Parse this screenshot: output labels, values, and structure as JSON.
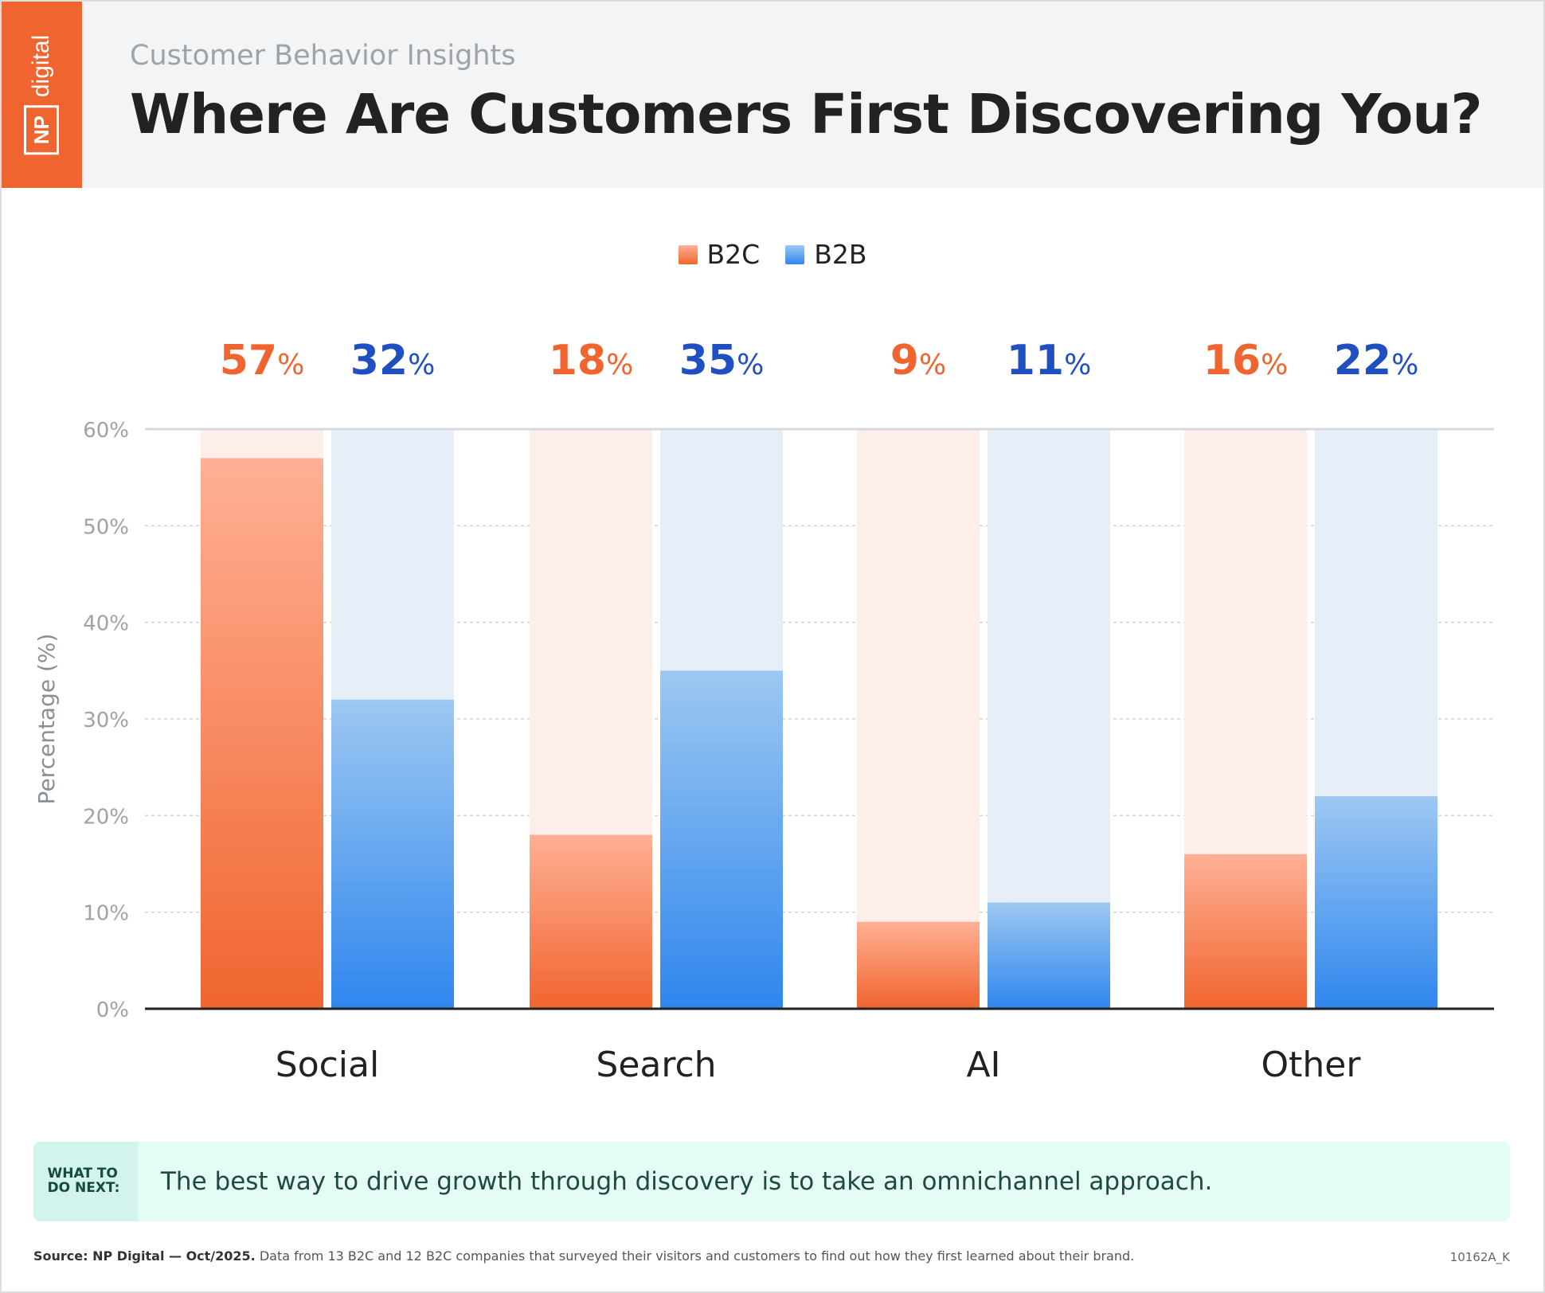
{
  "header": {
    "logo_abbrev": "NP",
    "logo_word": "digital",
    "eyebrow": "Customer Behavior Insights",
    "title": "Where Are Customers First Discovering You?"
  },
  "colors": {
    "b2c": "#f0652f",
    "b2c_light": "#ffb095",
    "b2c_track": "#fdeee9",
    "b2b": "#1f4fc0",
    "b2b_bar": "#2f86ee",
    "b2b_light": "#9dc8f2",
    "b2b_track": "#e6eef8",
    "brand_orange": "#f0652f"
  },
  "chart_data": {
    "type": "bar",
    "categories": [
      "Social",
      "Search",
      "AI",
      "Other"
    ],
    "series": [
      {
        "name": "B2C",
        "values": [
          57,
          18,
          9,
          16
        ]
      },
      {
        "name": "B2B",
        "values": [
          32,
          35,
          11,
          22
        ]
      }
    ],
    "ylabel": "Percentage (%)",
    "ylim": [
      0,
      60
    ],
    "yticks": [
      0,
      10,
      20,
      30,
      40,
      50,
      60
    ],
    "ytick_labels": [
      "0%",
      "10%",
      "20%",
      "30%",
      "40%",
      "50%",
      "60%"
    ],
    "value_labels": [
      [
        "57",
        "18",
        "9",
        "16"
      ],
      [
        "32",
        "35",
        "11",
        "22"
      ]
    ],
    "value_suffix": "%",
    "grid": true,
    "legend": "top-center"
  },
  "takeaway": {
    "tag": "WHAT TO DO NEXT:",
    "text": "The best way to drive growth through discovery is to take an omnichannel approach."
  },
  "footer": {
    "source_bold": "Source: NP Digital — Oct/2025.",
    "source_text": " Data from 13 B2C and 12 B2C companies that surveyed their visitors and customers to find out how they first learned about their brand.",
    "code": "10162A_K"
  }
}
